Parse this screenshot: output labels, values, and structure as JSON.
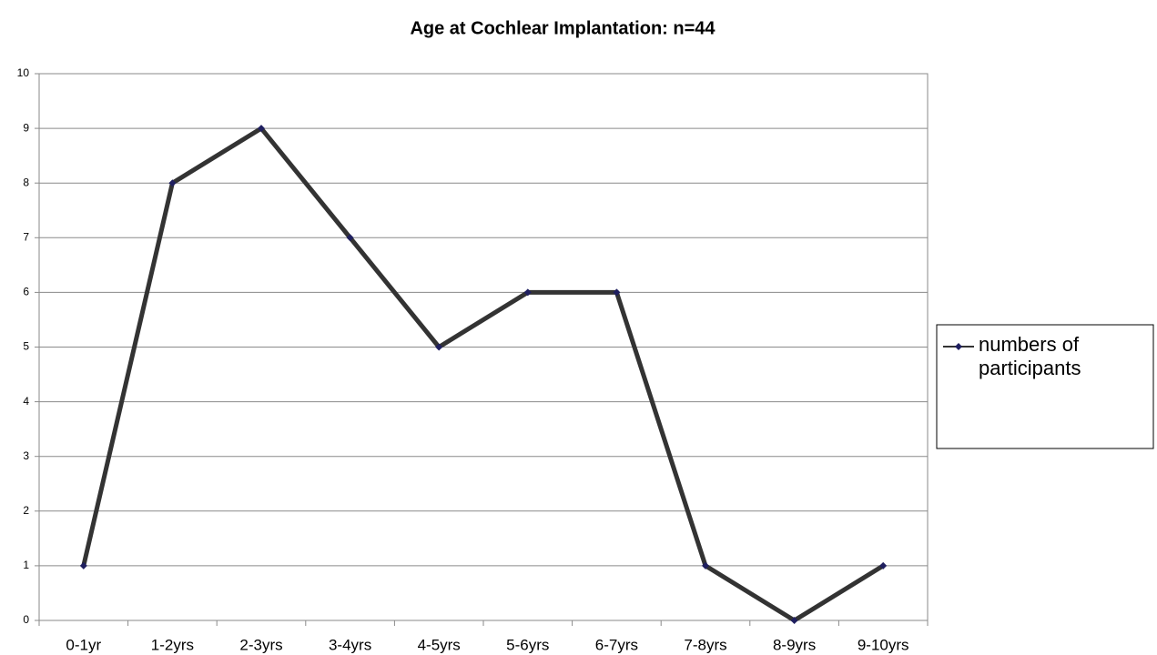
{
  "chart_data": {
    "type": "line",
    "title": "Age at Cochlear Implantation: n=44",
    "categories": [
      "0-1yr",
      "1-2yrs",
      "2-3yrs",
      "3-4yrs",
      "4-5yrs",
      "5-6yrs",
      "6-7yrs",
      "7-8yrs",
      "8-9yrs",
      "9-10yrs"
    ],
    "series": [
      {
        "name": "numbers of participants",
        "color": "#333333",
        "marker_color": "#1f1f5f",
        "values": [
          1,
          8,
          9,
          7,
          5,
          6,
          6,
          1,
          0,
          1
        ]
      }
    ],
    "ylim": [
      0,
      10
    ],
    "yticks": [
      0,
      1,
      2,
      3,
      4,
      5,
      6,
      7,
      8,
      9,
      10
    ],
    "grid": true,
    "legend": "right"
  }
}
